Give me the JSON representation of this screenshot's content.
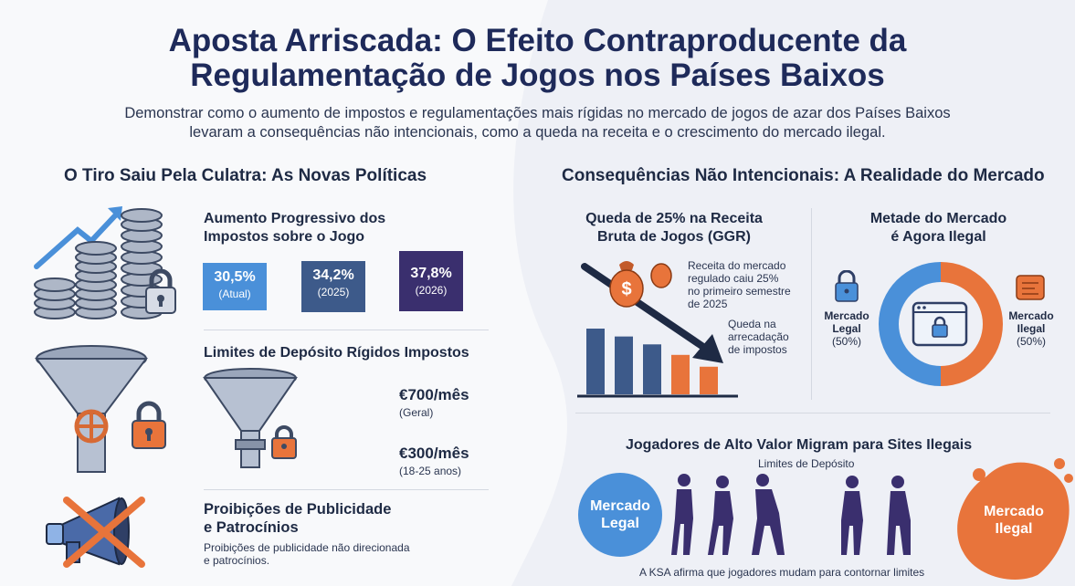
{
  "header": {
    "title_line1": "Aposta Arriscada: O Efeito Contraproducente da",
    "title_line2": "Regulamentação de Jogos nos Países Baixos",
    "subtitle_line1": "Demonstrar como o aumento de impostos e regulamentações mais rígidas no mercado de jogos de azar dos Países Baixos",
    "subtitle_line2": "levaram a consequências não intencionais, como a queda na receita e o crescimento do mercado ilegal."
  },
  "left": {
    "heading": "O Tiro Saiu Pela Culatra: As Novas Políticas",
    "taxes": {
      "title_line1": "Aumento Progressivo dos",
      "title_line2": "Impostos sobre o Jogo",
      "items": [
        {
          "value": "30,5%",
          "label": "(Atual)",
          "color": "#4a90d9"
        },
        {
          "value": "34,2%",
          "label": "(2025)",
          "color": "#3d5a8a"
        },
        {
          "value": "37,8%",
          "label": "(2026)",
          "color": "#3a2f6e"
        }
      ]
    },
    "limits": {
      "title": "Limites de Depósito Rígidos Impostos",
      "general_value": "€700/mês",
      "general_label": "(Geral)",
      "youth_value": "€300/mês",
      "youth_label": "(18-25 anos)"
    },
    "ads": {
      "title_line1": "Proibições de Publicidade",
      "title_line2": "e Patrocínios",
      "desc_line1": "Proibições de publicidade não direcionada",
      "desc_line2": "e patrocínios."
    }
  },
  "right": {
    "heading": "Consequências Não Intencionais: A Realidade do Mercado",
    "revenue": {
      "title_line1": "Queda de 25% na Receita",
      "title_line2": "Bruta de Jogos (GGR)",
      "note_lines": [
        "Receita do mercado",
        "regulado caiu 25%",
        "no primeiro semestre",
        "de 2025"
      ],
      "arrow_lines": [
        "Queda na",
        "arrecadação",
        "de impostos"
      ]
    },
    "market": {
      "title_line1": "Metade do Mercado",
      "title_line2": "é Agora Ilegal",
      "legal_label_line1": "Mercado",
      "legal_label_line2": "Legal",
      "legal_pct": "(50%)",
      "illegal_label_line1": "Mercado",
      "illegal_label_line2": "Ilegal",
      "illegal_pct": "(50%)"
    },
    "migration": {
      "title": "Jogadores de Alto Valor Migram para Sites Ilegais",
      "limits_label": "Limites de Depósito",
      "legal_line1": "Mercado",
      "legal_line2": "Legal",
      "illegal_line1": "Mercado",
      "illegal_line2": "Ilegal",
      "footnote": "A KSA afirma que jogadores mudam para contornar limites"
    }
  },
  "chart_data": [
    {
      "type": "bar",
      "categories": [
        "1",
        "2",
        "3",
        "4",
        "5"
      ],
      "values": [
        100,
        88,
        76,
        60,
        42
      ],
      "colors": [
        "#3d5a8a",
        "#3d5a8a",
        "#3d5a8a",
        "#e8743b",
        "#e8743b"
      ],
      "title": "Queda de 25% na Receita Bruta de Jogos (GGR)"
    },
    {
      "type": "pie",
      "labels": [
        "Mercado Legal",
        "Mercado Ilegal"
      ],
      "values": [
        50,
        50
      ],
      "colors": [
        "#4a90d9",
        "#e8743b"
      ],
      "title": "Metade do Mercado é Agora Ilegal"
    }
  ],
  "colors": {
    "navy": "#1e2a5a",
    "blue": "#4a90d9",
    "orange": "#e8743b",
    "slate": "#3d5a8a",
    "purple": "#3a2f6e"
  }
}
